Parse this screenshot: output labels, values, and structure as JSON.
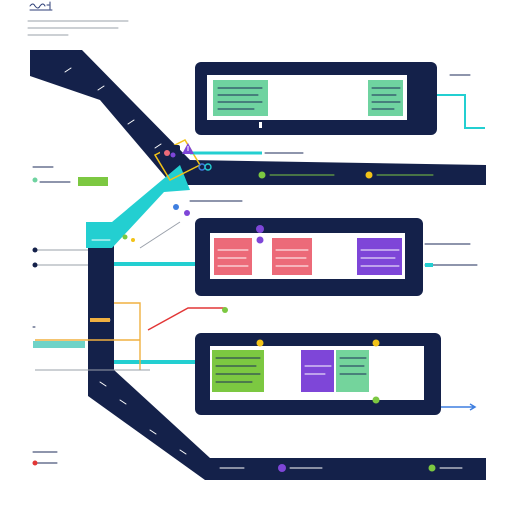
{
  "header": {
    "title": "",
    "subtitle": ""
  },
  "palette": {
    "navy": "#14214a",
    "teal": "#23cfd1",
    "green": "#6fd3a0",
    "mint": "#74d49c",
    "lime": "#7cc841",
    "pink": "#ec6a79",
    "purple": "#7e46d8",
    "yellow": "#f2c318",
    "blue": "#3f7fe0",
    "red": "#e23636",
    "gold": "#f0b040",
    "gray": "#9aa0aa"
  },
  "icons": [
    "panel-icon",
    "warning-icon",
    "link-icon"
  ]
}
